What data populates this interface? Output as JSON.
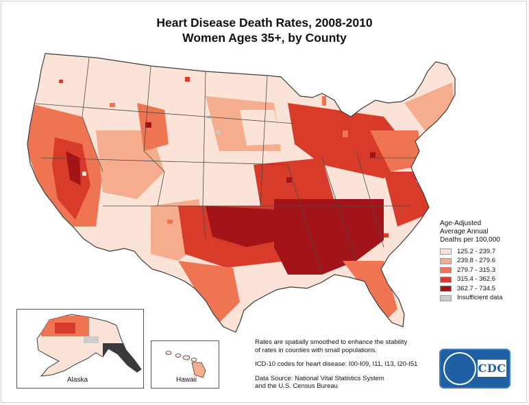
{
  "title": "Heart Disease Death Rates, 2008-2010",
  "subtitle": "Women Ages 35+, by County",
  "legend": {
    "title_lines": [
      "Age-Adjusted",
      "Average Annual",
      "Deaths per 100,000"
    ],
    "classes": [
      {
        "label": "125.2 - 239.7",
        "color": "#fbe3d7"
      },
      {
        "label": "239.8 - 279.6",
        "color": "#f6ad8e"
      },
      {
        "label": "279.7 - 315.3",
        "color": "#ee7452"
      },
      {
        "label": "315.4 - 362.6",
        "color": "#d93b2b"
      },
      {
        "label": "362.7 - 734.5",
        "color": "#a31419"
      },
      {
        "label": "Insufficient data",
        "color": "#cccccc"
      }
    ]
  },
  "insets": {
    "alaska_label": "Alaska",
    "hawaii_label": "Hawaii"
  },
  "notes": {
    "smoothing": [
      "Rates are spatially smoothed to enhance the stability",
      "of rates in counties with small populations."
    ],
    "icd": "ICD-10 codes for heart disease: I00-I09, I11, I13, I20-I51",
    "source": [
      "Data Source: National Vital Statistics System",
      "and the U.S. Census Bureau"
    ]
  },
  "logo": {
    "text": "CDC",
    "colors": {
      "background": "#1f5fa3",
      "text_box": "#ffffff"
    }
  },
  "map": {
    "region_names": [
      "Alaska",
      "Hawaii",
      "Continental United States"
    ],
    "border_color": "#3a3a3a"
  }
}
